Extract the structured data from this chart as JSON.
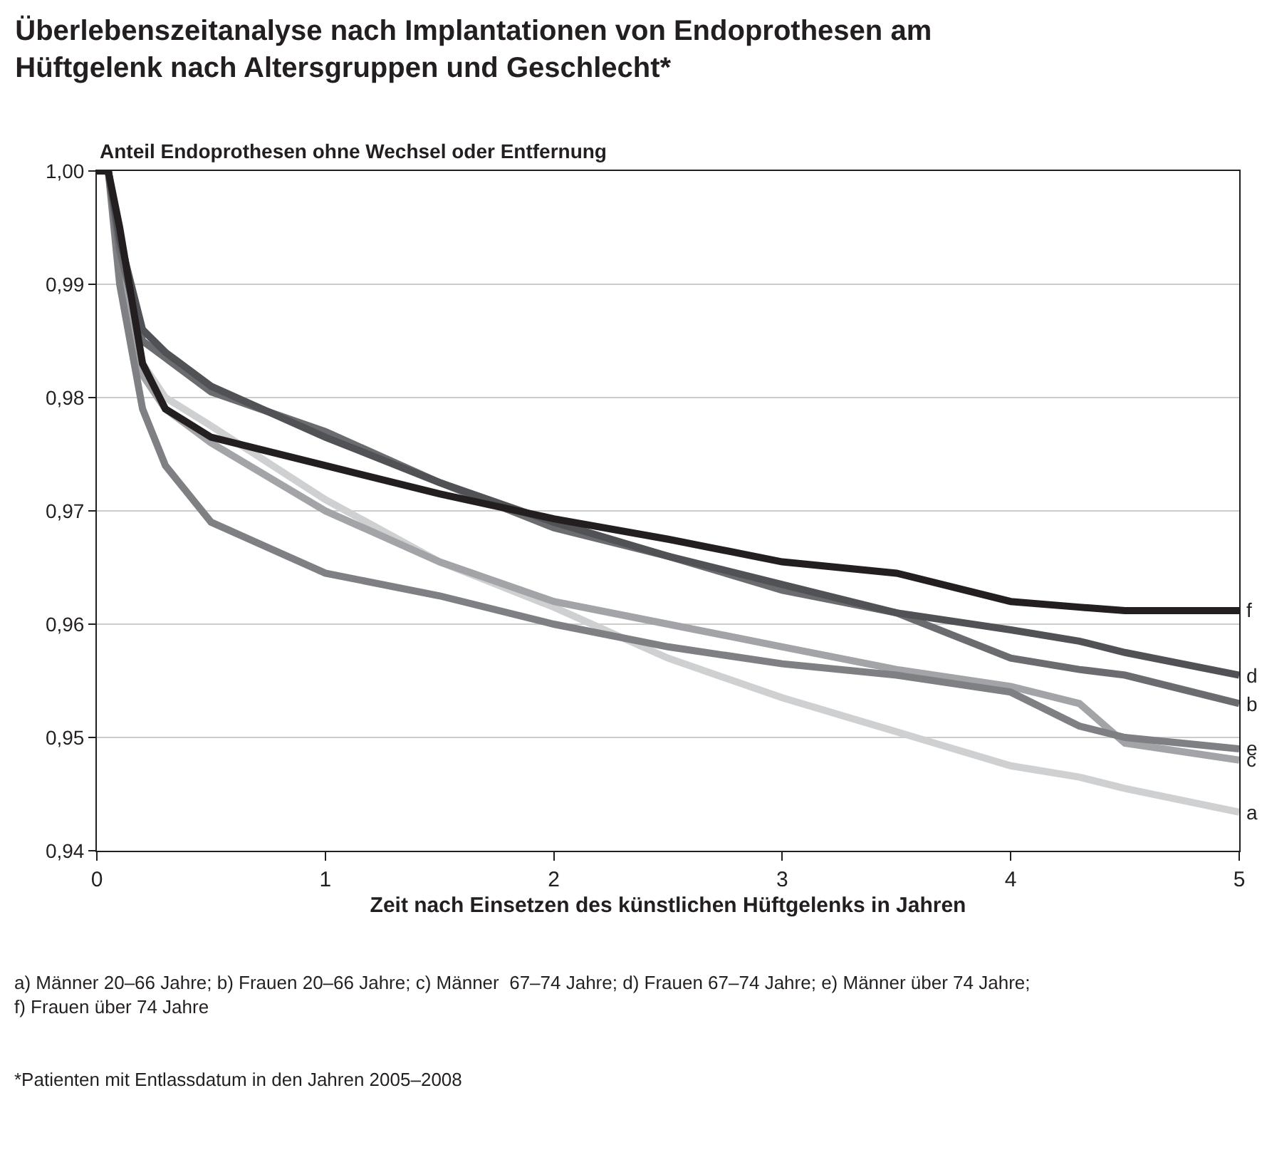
{
  "chart_data": {
    "type": "line",
    "title": "Überlebenszeitanalyse nach Implantationen von Endoprothesen am\nHüftgelenk nach Altersgruppen und Geschlecht*",
    "ylabel": "Anteil Endoprothesen ohne Wechsel oder Entfernung",
    "xlabel": "Zeit nach Einsetzen des künstlichen Hüftgelenks in Jahren",
    "x": [
      0,
      0.05,
      0.1,
      0.2,
      0.3,
      0.5,
      1,
      1.5,
      2,
      2.5,
      3,
      3.5,
      4,
      4.3,
      4.5,
      5
    ],
    "series": [
      {
        "name": "a",
        "color": "#cfd0d2",
        "values": [
          1.0,
          1.0,
          0.992,
          0.983,
          0.98,
          0.9775,
          0.971,
          0.9655,
          0.9615,
          0.957,
          0.9535,
          0.9505,
          0.9475,
          0.9465,
          0.9455,
          0.9434
        ]
      },
      {
        "name": "c",
        "color": "#a3a4a7",
        "values": [
          1.0,
          1.0,
          0.992,
          0.982,
          0.979,
          0.976,
          0.97,
          0.9655,
          0.962,
          0.96,
          0.958,
          0.956,
          0.9545,
          0.953,
          0.9495,
          0.948
        ]
      },
      {
        "name": "e",
        "color": "#7f8084",
        "values": [
          1.0,
          1.0,
          0.99,
          0.979,
          0.974,
          0.969,
          0.9645,
          0.9625,
          0.96,
          0.958,
          0.9565,
          0.9555,
          0.954,
          0.951,
          0.95,
          0.949
        ]
      },
      {
        "name": "b",
        "color": "#6b6c70",
        "values": [
          1.0,
          1.0,
          0.993,
          0.985,
          0.9835,
          0.9805,
          0.977,
          0.9725,
          0.9685,
          0.966,
          0.963,
          0.961,
          0.957,
          0.956,
          0.9555,
          0.953
        ]
      },
      {
        "name": "d",
        "color": "#515256",
        "values": [
          1.0,
          1.0,
          0.994,
          0.986,
          0.984,
          0.981,
          0.9765,
          0.9725,
          0.969,
          0.966,
          0.9635,
          0.961,
          0.9595,
          0.9585,
          0.9575,
          0.9555
        ]
      },
      {
        "name": "f",
        "color": "#231f20",
        "values": [
          1.0,
          1.0,
          0.995,
          0.983,
          0.979,
          0.9765,
          0.974,
          0.9715,
          0.9693,
          0.9675,
          0.9655,
          0.9645,
          0.962,
          0.9615,
          0.9612,
          0.9612
        ]
      }
    ],
    "xlim": [
      0,
      5
    ],
    "xticks": [
      0,
      1,
      2,
      3,
      4,
      5
    ],
    "ylim": [
      0.94,
      1.0
    ],
    "yticks": [
      {
        "value": 0.94,
        "label": "0,94"
      },
      {
        "value": 0.95,
        "label": "0,95"
      },
      {
        "value": 0.96,
        "label": "0,96"
      },
      {
        "value": 0.97,
        "label": "0,97"
      },
      {
        "value": 0.98,
        "label": "0,98"
      },
      {
        "value": 0.99,
        "label": "0,99"
      },
      {
        "value": 1.0,
        "label": "1,00"
      }
    ],
    "grid": "y",
    "legend": false,
    "marker": "none",
    "line_style": "solid",
    "annotations": [
      "a) Männer 20–66 Jahre; b) Frauen 20–66 Jahre; c) Männer  67–74 Jahre; d) Frauen 67–74 Jahre; e) Männer über 74 Jahre;\nf) Frauen über 74 Jahre",
      "*Patienten mit Entlassdatum in den Jahren 2005–2008"
    ]
  }
}
